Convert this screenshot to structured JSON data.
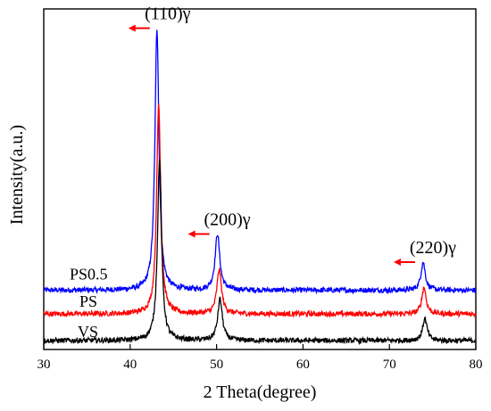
{
  "chart_data": {
    "type": "line",
    "title": "",
    "xlabel": "2 Theta(degree)",
    "ylabel": "Intensity(a.u.)",
    "xlim": [
      30,
      80
    ],
    "xticks": [
      "30",
      "40",
      "50",
      "60",
      "70",
      "80"
    ],
    "yticks": [],
    "grid": false,
    "series": [
      {
        "name": "PS0.5",
        "color": "#0000ff",
        "baseline": 0.4,
        "peaks": [
          {
            "x": 43.1,
            "h": 1.77,
            "w": 0.28
          },
          {
            "x": 50.1,
            "h": 0.38,
            "w": 0.32
          },
          {
            "x": 73.9,
            "h": 0.19,
            "w": 0.3
          }
        ]
      },
      {
        "name": "PS",
        "color": "#ff0000",
        "baseline": 0.24,
        "peaks": [
          {
            "x": 43.3,
            "h": 1.42,
            "w": 0.28
          },
          {
            "x": 50.3,
            "h": 0.3,
            "w": 0.32
          },
          {
            "x": 74.0,
            "h": 0.18,
            "w": 0.3
          }
        ]
      },
      {
        "name": "VS",
        "color": "#000000",
        "baseline": 0.06,
        "peaks": [
          {
            "x": 43.4,
            "h": 1.22,
            "w": 0.28
          },
          {
            "x": 50.4,
            "h": 0.28,
            "w": 0.32
          },
          {
            "x": 74.1,
            "h": 0.15,
            "w": 0.3
          }
        ]
      }
    ],
    "annotations": [
      {
        "text": "(110)γ",
        "x": 43.2,
        "arrow_color": "#ff0000"
      },
      {
        "text": "(200)γ",
        "x": 50.1,
        "arrow_color": "#ff0000"
      },
      {
        "text": "(220)γ",
        "x": 73.9,
        "arrow_color": "#ff0000"
      }
    ]
  }
}
